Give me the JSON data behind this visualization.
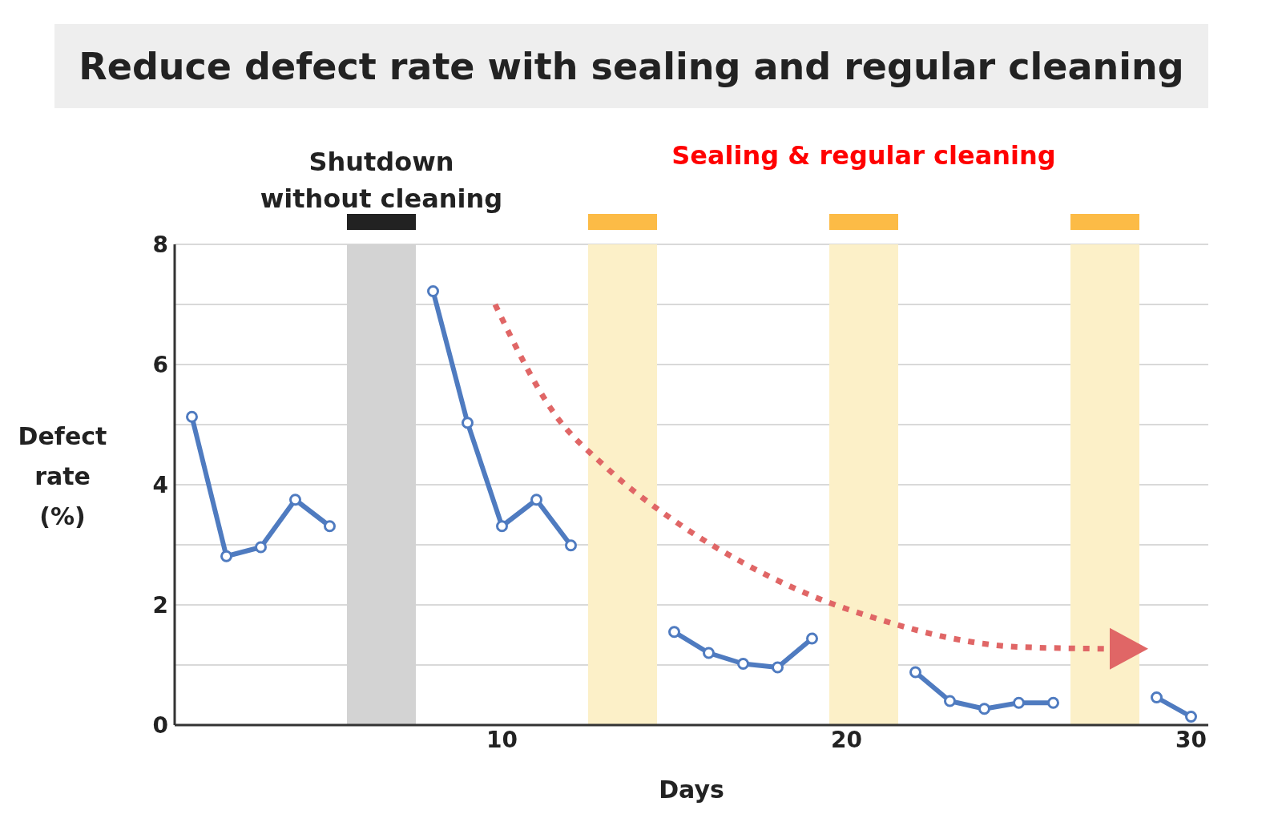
{
  "chart_data": {
    "type": "line",
    "title": "Reduce defect rate with sealing and regular cleaning",
    "xlabel": "Days",
    "ylabel": "Defect rate (%)",
    "x": [
      1,
      2,
      3,
      4,
      5,
      6,
      7,
      8,
      9,
      10,
      11,
      12,
      13,
      14,
      15,
      16,
      17,
      18,
      19,
      20,
      21,
      22,
      23,
      24,
      25,
      26,
      27,
      28,
      29,
      30
    ],
    "series": [
      {
        "color": "#4f7bc0",
        "values": [
          5.13,
          2.81,
          2.96,
          3.75,
          3.31,
          null,
          null,
          7.22,
          5.03,
          3.31,
          3.75,
          2.99,
          null,
          null,
          1.55,
          1.2,
          1.02,
          0.96,
          1.44,
          null,
          null,
          0.88,
          0.4,
          0.27,
          0.37,
          0.37,
          null,
          null,
          0.46,
          0.14
        ],
        "marker": "circle"
      },
      {
        "type": "line",
        "color": "#e06666",
        "line_style": "dotted",
        "marker": "none",
        "x": [
          9.8,
          11.5,
          13,
          15,
          17,
          19,
          21,
          23,
          25,
          27.5
        ],
        "values": [
          7.0,
          5.2,
          4.3,
          3.4,
          2.7,
          2.15,
          1.75,
          1.45,
          1.3,
          1.27
        ]
      }
    ],
    "xlim": [
      0.5,
      30.5
    ],
    "xticks": [
      10,
      20,
      30
    ],
    "ylim": [
      0,
      8
    ],
    "yticks": [
      0,
      {
        "value": 1,
        "label": null
      },
      2,
      {
        "value": 3,
        "label": null
      },
      4,
      {
        "value": 5,
        "label": null
      },
      6,
      {
        "value": 7,
        "label": null
      },
      8
    ],
    "grid": "y",
    "bands": [
      {
        "axis": "x",
        "from": 5.5,
        "to": 7.5,
        "label": "Shutdown without cleaning",
        "color": "#d3d3d3"
      },
      {
        "axis": "x",
        "from": 12.5,
        "to": 14.5,
        "color": "#fcf0c8"
      },
      {
        "axis": "x",
        "from": 19.5,
        "to": 21.5,
        "color": "#fcf0c8"
      },
      {
        "axis": "x",
        "from": 26.5,
        "to": 28.5,
        "color": "#fcf0c8"
      }
    ],
    "annotations": [
      "Sealing & regular cleaning"
    ]
  }
}
